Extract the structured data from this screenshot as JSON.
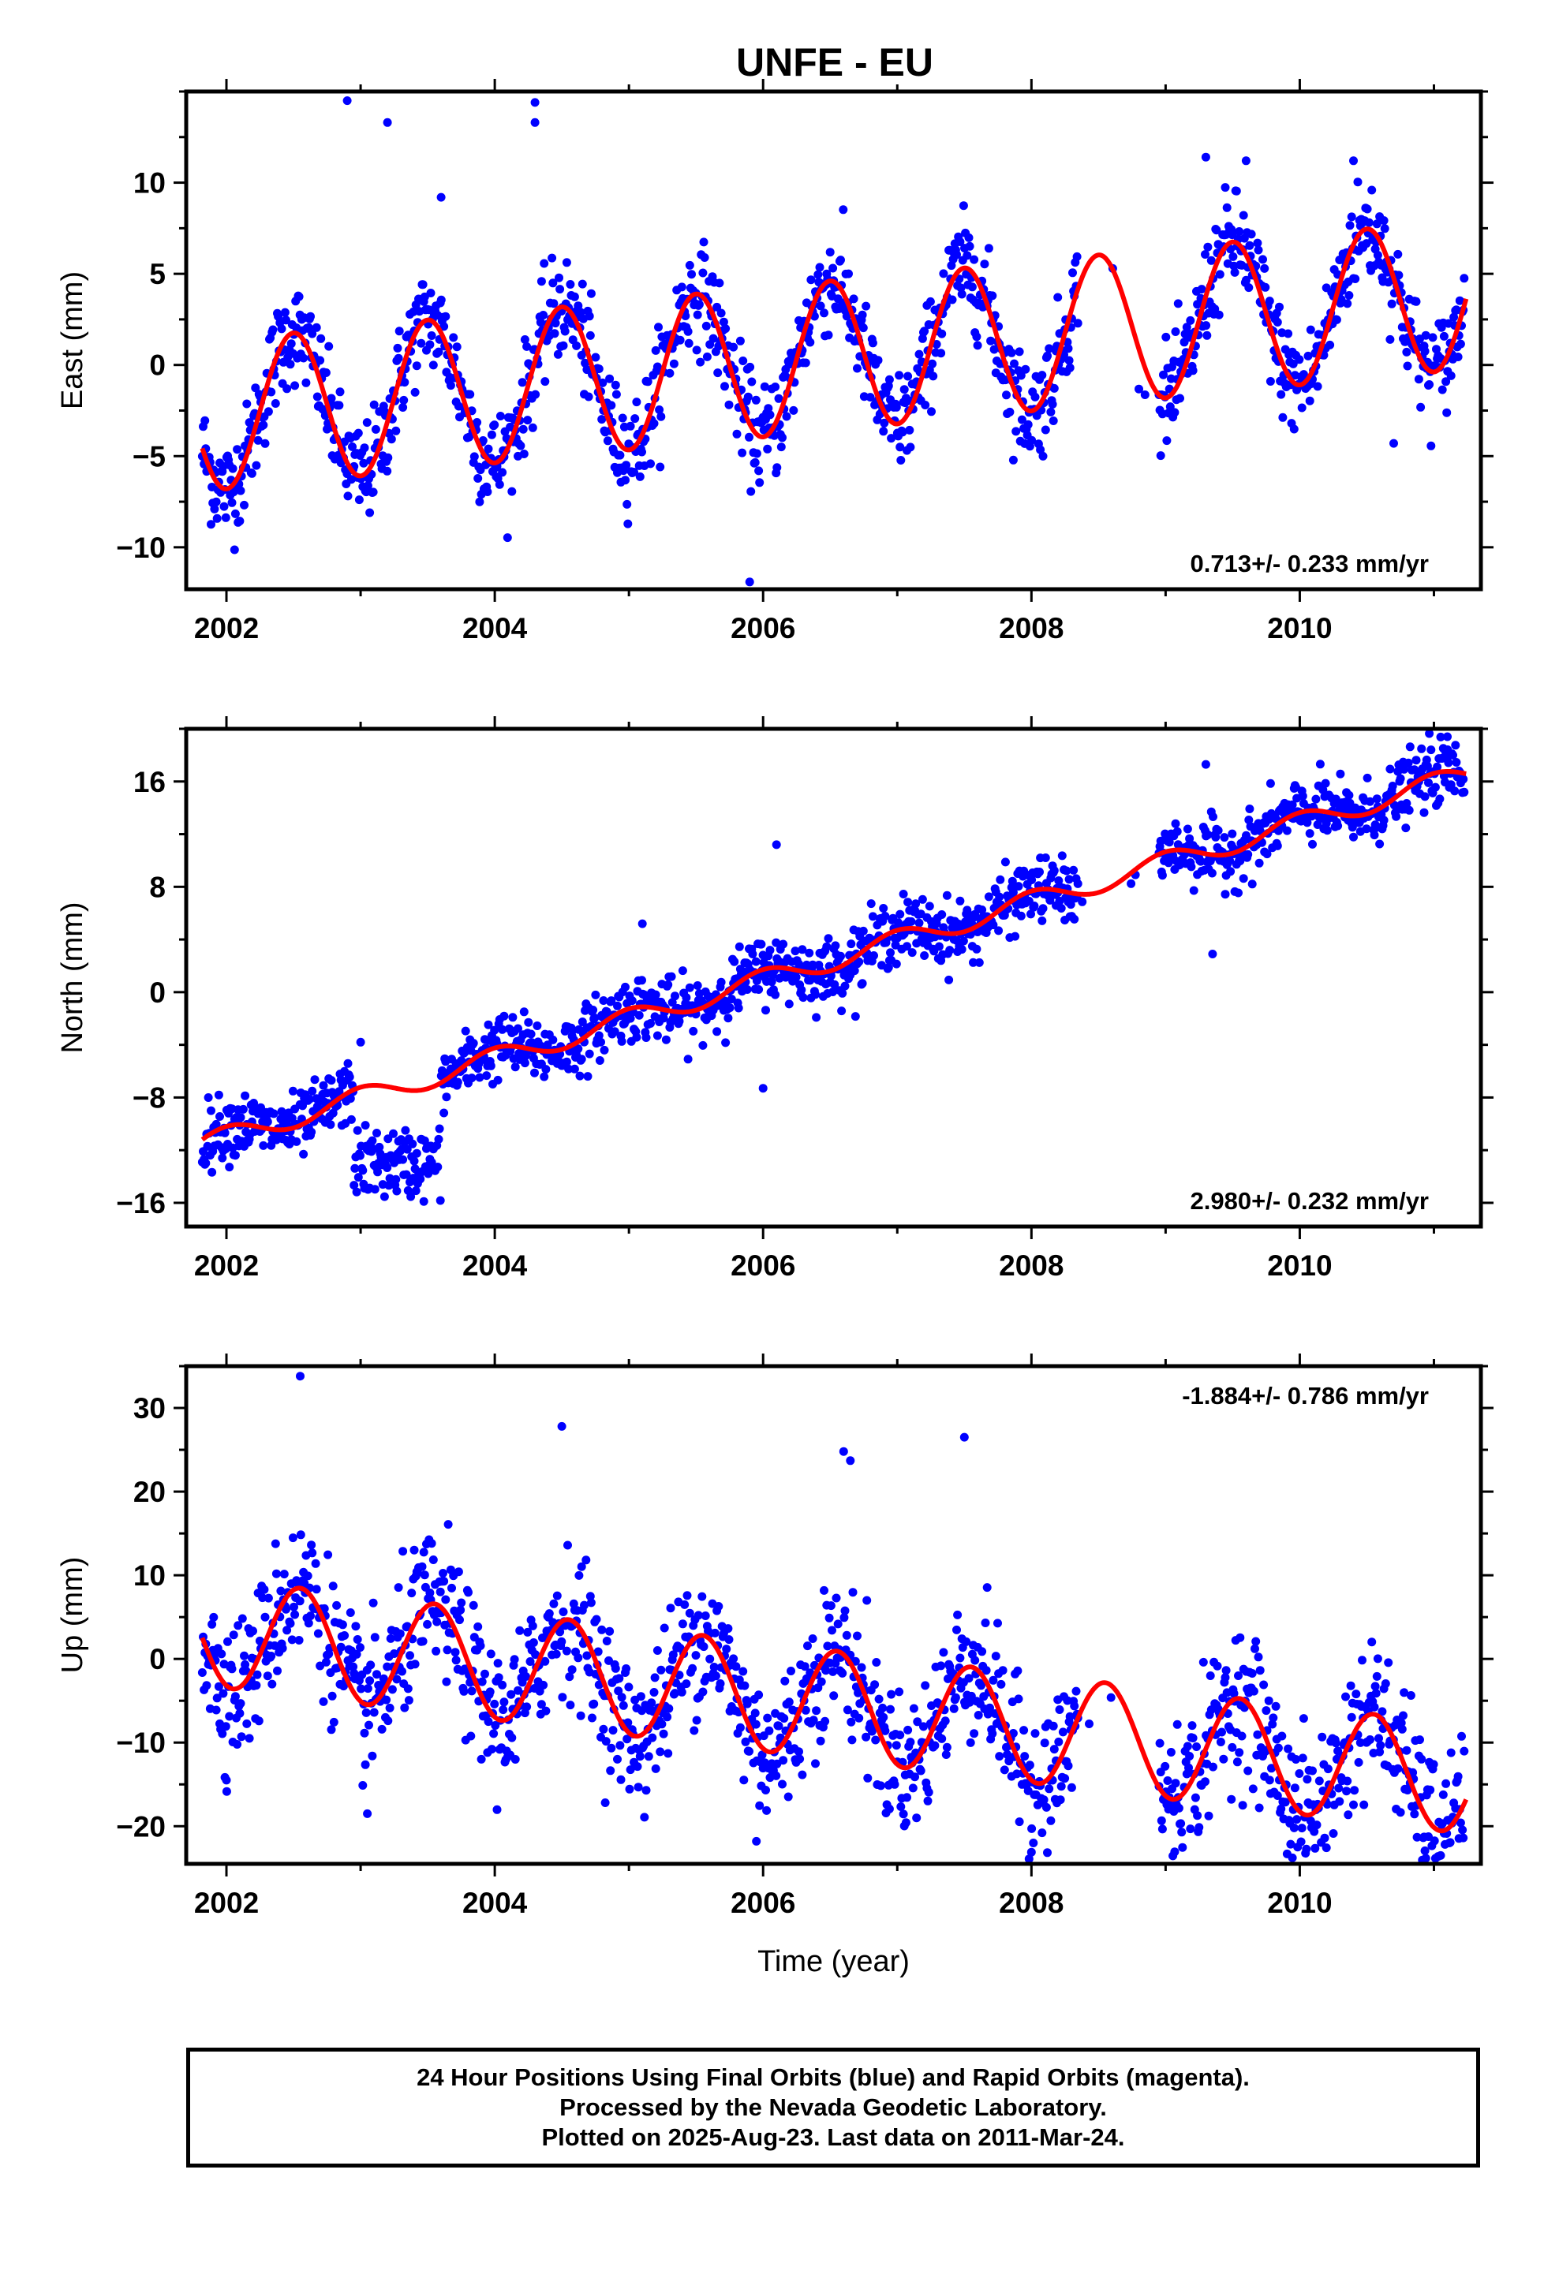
{
  "chart_data": [
    {
      "type": "scatter",
      "title": "UNFE - EU",
      "ylabel": "East (mm)",
      "xlim": [
        2001.7,
        2011.35
      ],
      "ylim": [
        -12.3,
        15
      ],
      "yticks": [
        -10,
        -5,
        0,
        5,
        10
      ],
      "xticks": [
        2002,
        2004,
        2006,
        2008,
        2010
      ],
      "rate_text": "0.713+/- 0.233 mm/yr",
      "rate_position": "bottom-right",
      "model": {
        "name": "fit",
        "color": "#ff0000",
        "offset": -2.7,
        "rate": 0.713,
        "amplitude": 4.1,
        "peak_phase": 0.5
      },
      "points_color": "#0000ff",
      "outliers": {
        "x": [
          2002.9,
          2003.2,
          2003.6,
          2005.9,
          2009.3,
          2009.6,
          2010.4,
          2010.7,
          2004.3,
          2004.3
        ],
        "y": [
          14.5,
          13.3,
          9.2,
          -11.9,
          11.4,
          11.2,
          11.2,
          -4.3,
          14.4,
          13.3
        ]
      },
      "gaps": [
        [
          2008.35,
          2008.95
        ]
      ]
    },
    {
      "type": "scatter",
      "title": "",
      "ylabel": "North (mm)",
      "xlim": [
        2001.7,
        2011.35
      ],
      "ylim": [
        -17.8,
        20
      ],
      "yticks": [
        -16,
        -8,
        0,
        8,
        16
      ],
      "xticks": [
        2002,
        2004,
        2006,
        2008,
        2010
      ],
      "rate_text": "2.980+/- 0.232 mm/yr",
      "rate_position": "bottom-right",
      "model": {
        "name": "fit",
        "color": "#ff0000",
        "offset": -11,
        "rate": 2.98,
        "amplitude": 0.8,
        "peak_phase": 0.0
      },
      "points_color": "#0000ff",
      "outliers": {
        "x": [
          2003.0,
          2005.1,
          2006.1,
          2006.0,
          2009.3,
          2009.35,
          2011.1
        ],
        "y": [
          -3.8,
          5.2,
          11.2,
          -7.3,
          17.3,
          2.9,
          19.4
        ]
      },
      "gaps": [
        [
          2008.35,
          2008.95
        ]
      ]
    },
    {
      "type": "scatter",
      "title": "",
      "ylabel": "Up (mm)",
      "xlabel": "Time (year)",
      "xlim": [
        2001.7,
        2011.35
      ],
      "ylim": [
        -24.5,
        35
      ],
      "yticks": [
        -20,
        -10,
        0,
        10,
        20,
        30
      ],
      "xticks": [
        2002,
        2004,
        2006,
        2008,
        2010
      ],
      "rate_text": "-1.884+/- 0.786 mm/yr",
      "rate_position": "top-right",
      "model": {
        "name": "fit",
        "color": "#ff0000",
        "offset": 3.0,
        "rate": -1.884,
        "amplitude": 6.5,
        "peak_phase": 0.55
      },
      "points_color": "#0000ff",
      "outliers": {
        "x": [
          2002.55,
          2004.5,
          2006.6,
          2006.65,
          2007.5,
          2005.95,
          2008.0,
          2002.0,
          2003.05
        ],
        "y": [
          33.8,
          27.8,
          24.8,
          23.7,
          26.5,
          -21.8,
          -23.1,
          -14.5,
          -18.5
        ]
      },
      "gaps": [
        [
          2008.35,
          2008.95
        ]
      ]
    }
  ],
  "footer": {
    "line1": "24 Hour Positions Using Final Orbits (blue) and Rapid Orbits (magenta).",
    "line2": "Processed by the Nevada Geodetic Laboratory.",
    "line3": "Plotted on 2025-Aug-23. Last data on 2011-Mar-24."
  }
}
